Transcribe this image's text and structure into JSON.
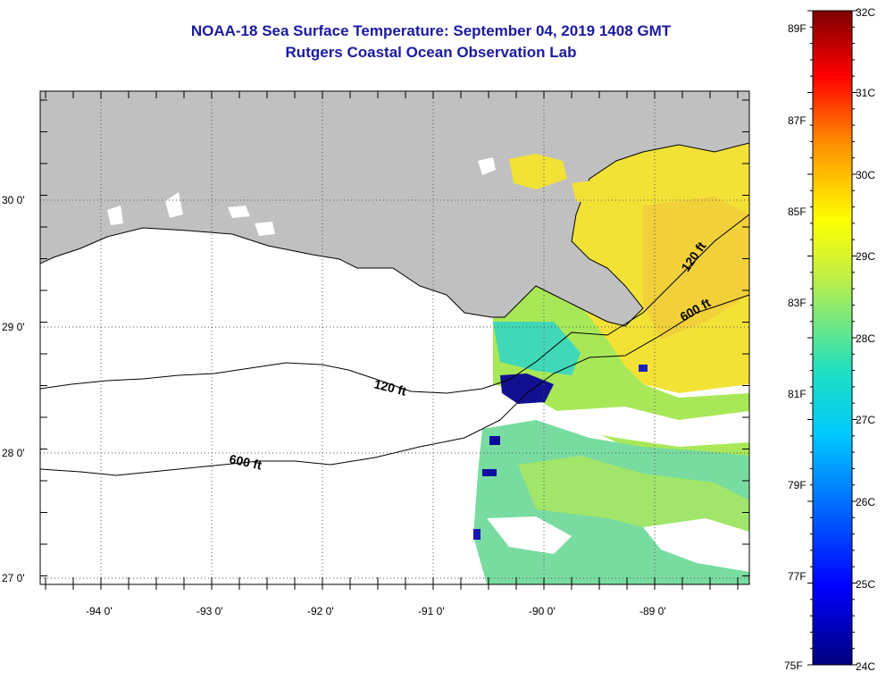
{
  "header": {
    "title": "NOAA-18 Sea Surface Temperature:  September 04, 2019 1408 GMT",
    "subtitle": "Rutgers Coastal Ocean Observation Lab"
  },
  "map": {
    "lon_range": [
      -94.5,
      -88.2
    ],
    "lat_range": [
      26.95,
      30.85
    ],
    "lon_ticks": [
      {
        "value": -94,
        "label": "-94 0'"
      },
      {
        "value": -93,
        "label": "-93 0'"
      },
      {
        "value": -92,
        "label": "-92 0'"
      },
      {
        "value": -91,
        "label": "-91 0'"
      },
      {
        "value": -90,
        "label": "-90 0'"
      },
      {
        "value": -89,
        "label": "-89 0'"
      }
    ],
    "lat_ticks": [
      {
        "value": 30,
        "label": "30 0'"
      },
      {
        "value": 29,
        "label": "29 0'"
      },
      {
        "value": 28,
        "label": "28 0'"
      },
      {
        "value": 27,
        "label": "27 0'"
      }
    ],
    "contour_labels": [
      {
        "text": "120 ft"
      },
      {
        "text": "120 ft"
      },
      {
        "text": "600 ft"
      },
      {
        "text": "600 ft"
      }
    ],
    "colors": {
      "land": "#c0c0c0",
      "no_data": "#ffffff",
      "contour": "#000000"
    }
  },
  "colorbar": {
    "min_c": 24,
    "max_c": 32,
    "fahrenheit_labels": [
      "89F",
      "87F",
      "85F",
      "83F",
      "81F",
      "79F",
      "77F",
      "75F"
    ],
    "celsius_labels": [
      "32C",
      "31C",
      "30C",
      "29C",
      "28C",
      "27C",
      "26C",
      "25C",
      "24C"
    ]
  }
}
